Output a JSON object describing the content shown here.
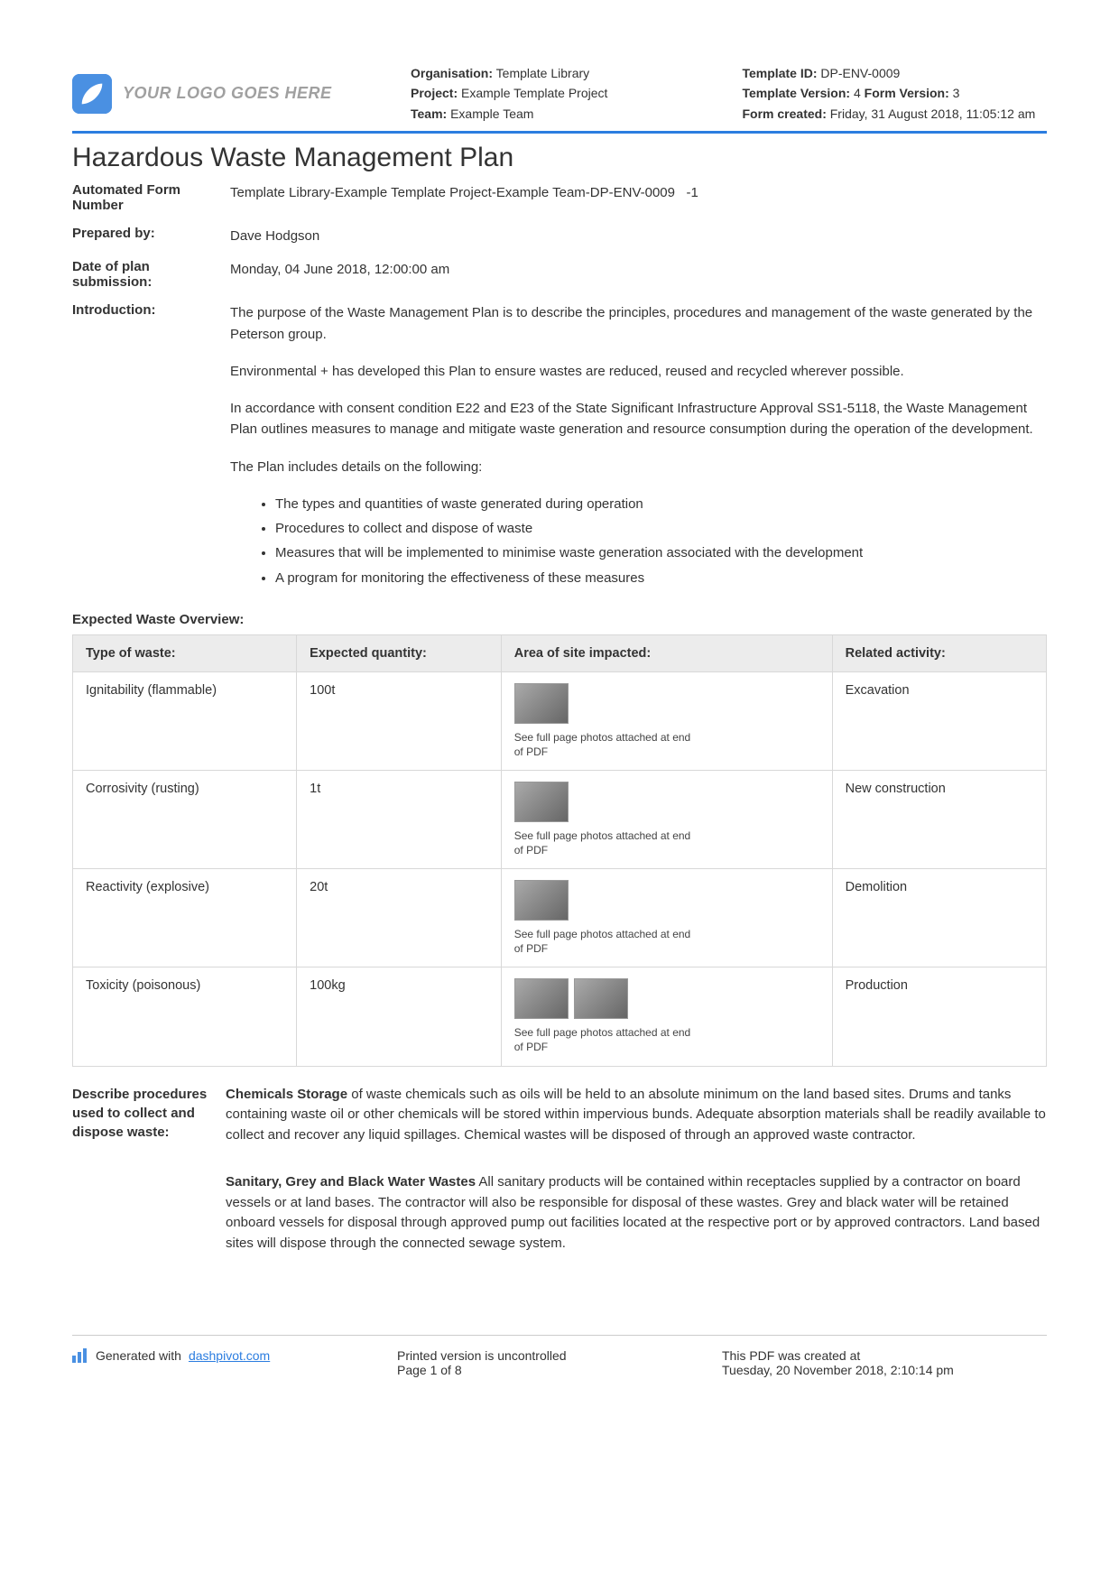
{
  "header": {
    "logo_placeholder": "YOUR LOGO GOES HERE",
    "meta_left": {
      "org_label": "Organisation:",
      "org_value": " Template Library",
      "project_label": "Project:",
      "project_value": " Example Template Project",
      "team_label": "Team:",
      "team_value": " Example Team"
    },
    "meta_right": {
      "template_id_label": "Template ID:",
      "template_id_value": " DP-ENV-0009",
      "template_version_label": "Template Version:",
      "template_version_value": " 4 ",
      "form_version_label": "Form Version:",
      "form_version_value": " 3",
      "form_created_label": "Form created:",
      "form_created_value": " Friday, 31 August 2018, 11:05:12 am"
    }
  },
  "title": "Hazardous Waste Management Plan",
  "fields": {
    "form_number_label": "Automated Form Number",
    "form_number_value": "Template Library-Example Template Project-Example Team-DP-ENV-0009   -1",
    "prepared_by_label": "Prepared by:",
    "prepared_by_value": "Dave Hodgson",
    "submission_label": "Date of plan submission:",
    "submission_value": "Monday, 04 June 2018, 12:00:00 am",
    "intro_label": "Introduction:",
    "intro_p1": "The purpose of the Waste Management Plan is to describe the principles, procedures and management of the waste generated by the Peterson group.",
    "intro_p2": "Environmental + has developed this Plan to ensure wastes are reduced, reused and recycled wherever possible.",
    "intro_p3": "In accordance with consent condition E22 and E23 of the State Significant Infrastructure Approval SS1-5118, the Waste Management Plan outlines measures to manage and mitigate waste generation and resource consumption during the operation of the development.",
    "intro_p4": "The Plan includes details on the following:",
    "intro_bullets": [
      "The types and quantities of waste generated during operation",
      "Procedures to collect and dispose of waste",
      "Measures that will be implemented to minimise waste generation associated with the development",
      "A program for monitoring the effectiveness of these measures"
    ]
  },
  "waste_overview_label": "Expected Waste Overview:",
  "waste_table": {
    "columns": [
      "Type of waste:",
      "Expected quantity:",
      "Area of site impacted:",
      "Related activity:"
    ],
    "photo_note": "See full page photos attached at end of PDF",
    "rows": [
      {
        "type": "Ignitability (flammable)",
        "qty": "100t",
        "thumbs": 1,
        "activity": "Excavation"
      },
      {
        "type": "Corrosivity (rusting)",
        "qty": "1t",
        "thumbs": 1,
        "activity": "New construction"
      },
      {
        "type": "Reactivity (explosive)",
        "qty": "20t",
        "thumbs": 1,
        "activity": "Demolition"
      },
      {
        "type": "Toxicity (poisonous)",
        "qty": "100kg",
        "thumbs": 2,
        "activity": "Production"
      }
    ]
  },
  "procedures": {
    "label": "Describe procedures used to collect and dispose waste:",
    "p1_bold": "Chemicals Storage",
    "p1_rest": " of waste chemicals such as oils will be held to an absolute minimum on the land based sites. Drums and tanks containing waste oil or other chemicals will be stored within impervious bunds. Adequate absorption materials shall be readily available to collect and recover any liquid spillages. Chemical wastes will be disposed of through an approved waste contractor.",
    "p2_bold": "Sanitary, Grey and Black Water Wastes",
    "p2_rest": " All sanitary products will be contained within receptacles supplied by a contractor on board vessels or at land bases. The contractor will also be responsible for disposal of these wastes. Grey and black water will be retained onboard vessels for disposal through approved pump out facilities located at the respective port or by approved contractors. Land based sites will dispose through the connected sewage system."
  },
  "footer": {
    "generated_prefix": "Generated with ",
    "generated_link": "dashpivot.com",
    "uncontrolled": "Printed version is uncontrolled",
    "page": "Page 1 of 8",
    "created_label": "This PDF was created at",
    "created_value": "Tuesday, 20 November 2018, 2:10:14 pm"
  },
  "colors": {
    "accent": "#2b7de0",
    "header_bg": "#ececec",
    "border": "#d8d8d8",
    "text": "#333333"
  }
}
